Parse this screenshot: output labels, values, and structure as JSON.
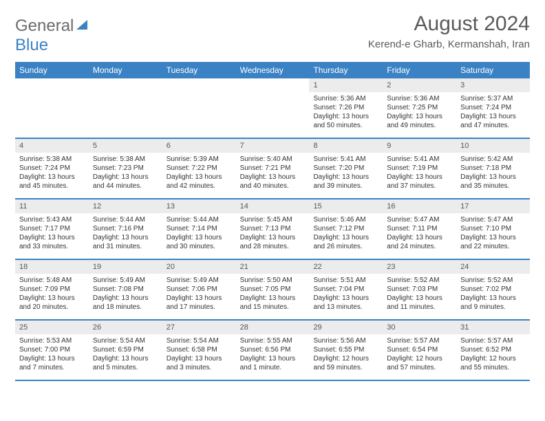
{
  "branding": {
    "logo_line1": "General",
    "logo_line2": "Blue",
    "logo_color_gray": "#6b6b6b",
    "logo_color_blue": "#3b82c4"
  },
  "header": {
    "month_title": "August 2024",
    "location": "Kerend-e Gharb, Kermanshah, Iran"
  },
  "styling": {
    "header_bg": "#3b82c4",
    "header_text": "#ffffff",
    "daynum_bg": "#ececec",
    "row_divider": "#3b82c4",
    "body_text": "#333333",
    "page_bg": "#ffffff",
    "font_family": "Arial",
    "day_header_fontsize": 12,
    "day_num_fontsize": 11,
    "day_content_fontsize": 10,
    "month_title_fontsize": 30,
    "location_fontsize": 15
  },
  "day_names": [
    "Sunday",
    "Monday",
    "Tuesday",
    "Wednesday",
    "Thursday",
    "Friday",
    "Saturday"
  ],
  "weeks": [
    [
      {
        "num": "",
        "sunrise": "",
        "sunset": "",
        "daylight": ""
      },
      {
        "num": "",
        "sunrise": "",
        "sunset": "",
        "daylight": ""
      },
      {
        "num": "",
        "sunrise": "",
        "sunset": "",
        "daylight": ""
      },
      {
        "num": "",
        "sunrise": "",
        "sunset": "",
        "daylight": ""
      },
      {
        "num": "1",
        "sunrise": "Sunrise: 5:36 AM",
        "sunset": "Sunset: 7:26 PM",
        "daylight": "Daylight: 13 hours and 50 minutes."
      },
      {
        "num": "2",
        "sunrise": "Sunrise: 5:36 AM",
        "sunset": "Sunset: 7:25 PM",
        "daylight": "Daylight: 13 hours and 49 minutes."
      },
      {
        "num": "3",
        "sunrise": "Sunrise: 5:37 AM",
        "sunset": "Sunset: 7:24 PM",
        "daylight": "Daylight: 13 hours and 47 minutes."
      }
    ],
    [
      {
        "num": "4",
        "sunrise": "Sunrise: 5:38 AM",
        "sunset": "Sunset: 7:24 PM",
        "daylight": "Daylight: 13 hours and 45 minutes."
      },
      {
        "num": "5",
        "sunrise": "Sunrise: 5:38 AM",
        "sunset": "Sunset: 7:23 PM",
        "daylight": "Daylight: 13 hours and 44 minutes."
      },
      {
        "num": "6",
        "sunrise": "Sunrise: 5:39 AM",
        "sunset": "Sunset: 7:22 PM",
        "daylight": "Daylight: 13 hours and 42 minutes."
      },
      {
        "num": "7",
        "sunrise": "Sunrise: 5:40 AM",
        "sunset": "Sunset: 7:21 PM",
        "daylight": "Daylight: 13 hours and 40 minutes."
      },
      {
        "num": "8",
        "sunrise": "Sunrise: 5:41 AM",
        "sunset": "Sunset: 7:20 PM",
        "daylight": "Daylight: 13 hours and 39 minutes."
      },
      {
        "num": "9",
        "sunrise": "Sunrise: 5:41 AM",
        "sunset": "Sunset: 7:19 PM",
        "daylight": "Daylight: 13 hours and 37 minutes."
      },
      {
        "num": "10",
        "sunrise": "Sunrise: 5:42 AM",
        "sunset": "Sunset: 7:18 PM",
        "daylight": "Daylight: 13 hours and 35 minutes."
      }
    ],
    [
      {
        "num": "11",
        "sunrise": "Sunrise: 5:43 AM",
        "sunset": "Sunset: 7:17 PM",
        "daylight": "Daylight: 13 hours and 33 minutes."
      },
      {
        "num": "12",
        "sunrise": "Sunrise: 5:44 AM",
        "sunset": "Sunset: 7:16 PM",
        "daylight": "Daylight: 13 hours and 31 minutes."
      },
      {
        "num": "13",
        "sunrise": "Sunrise: 5:44 AM",
        "sunset": "Sunset: 7:14 PM",
        "daylight": "Daylight: 13 hours and 30 minutes."
      },
      {
        "num": "14",
        "sunrise": "Sunrise: 5:45 AM",
        "sunset": "Sunset: 7:13 PM",
        "daylight": "Daylight: 13 hours and 28 minutes."
      },
      {
        "num": "15",
        "sunrise": "Sunrise: 5:46 AM",
        "sunset": "Sunset: 7:12 PM",
        "daylight": "Daylight: 13 hours and 26 minutes."
      },
      {
        "num": "16",
        "sunrise": "Sunrise: 5:47 AM",
        "sunset": "Sunset: 7:11 PM",
        "daylight": "Daylight: 13 hours and 24 minutes."
      },
      {
        "num": "17",
        "sunrise": "Sunrise: 5:47 AM",
        "sunset": "Sunset: 7:10 PM",
        "daylight": "Daylight: 13 hours and 22 minutes."
      }
    ],
    [
      {
        "num": "18",
        "sunrise": "Sunrise: 5:48 AM",
        "sunset": "Sunset: 7:09 PM",
        "daylight": "Daylight: 13 hours and 20 minutes."
      },
      {
        "num": "19",
        "sunrise": "Sunrise: 5:49 AM",
        "sunset": "Sunset: 7:08 PM",
        "daylight": "Daylight: 13 hours and 18 minutes."
      },
      {
        "num": "20",
        "sunrise": "Sunrise: 5:49 AM",
        "sunset": "Sunset: 7:06 PM",
        "daylight": "Daylight: 13 hours and 17 minutes."
      },
      {
        "num": "21",
        "sunrise": "Sunrise: 5:50 AM",
        "sunset": "Sunset: 7:05 PM",
        "daylight": "Daylight: 13 hours and 15 minutes."
      },
      {
        "num": "22",
        "sunrise": "Sunrise: 5:51 AM",
        "sunset": "Sunset: 7:04 PM",
        "daylight": "Daylight: 13 hours and 13 minutes."
      },
      {
        "num": "23",
        "sunrise": "Sunrise: 5:52 AM",
        "sunset": "Sunset: 7:03 PM",
        "daylight": "Daylight: 13 hours and 11 minutes."
      },
      {
        "num": "24",
        "sunrise": "Sunrise: 5:52 AM",
        "sunset": "Sunset: 7:02 PM",
        "daylight": "Daylight: 13 hours and 9 minutes."
      }
    ],
    [
      {
        "num": "25",
        "sunrise": "Sunrise: 5:53 AM",
        "sunset": "Sunset: 7:00 PM",
        "daylight": "Daylight: 13 hours and 7 minutes."
      },
      {
        "num": "26",
        "sunrise": "Sunrise: 5:54 AM",
        "sunset": "Sunset: 6:59 PM",
        "daylight": "Daylight: 13 hours and 5 minutes."
      },
      {
        "num": "27",
        "sunrise": "Sunrise: 5:54 AM",
        "sunset": "Sunset: 6:58 PM",
        "daylight": "Daylight: 13 hours and 3 minutes."
      },
      {
        "num": "28",
        "sunrise": "Sunrise: 5:55 AM",
        "sunset": "Sunset: 6:56 PM",
        "daylight": "Daylight: 13 hours and 1 minute."
      },
      {
        "num": "29",
        "sunrise": "Sunrise: 5:56 AM",
        "sunset": "Sunset: 6:55 PM",
        "daylight": "Daylight: 12 hours and 59 minutes."
      },
      {
        "num": "30",
        "sunrise": "Sunrise: 5:57 AM",
        "sunset": "Sunset: 6:54 PM",
        "daylight": "Daylight: 12 hours and 57 minutes."
      },
      {
        "num": "31",
        "sunrise": "Sunrise: 5:57 AM",
        "sunset": "Sunset: 6:52 PM",
        "daylight": "Daylight: 12 hours and 55 minutes."
      }
    ]
  ]
}
